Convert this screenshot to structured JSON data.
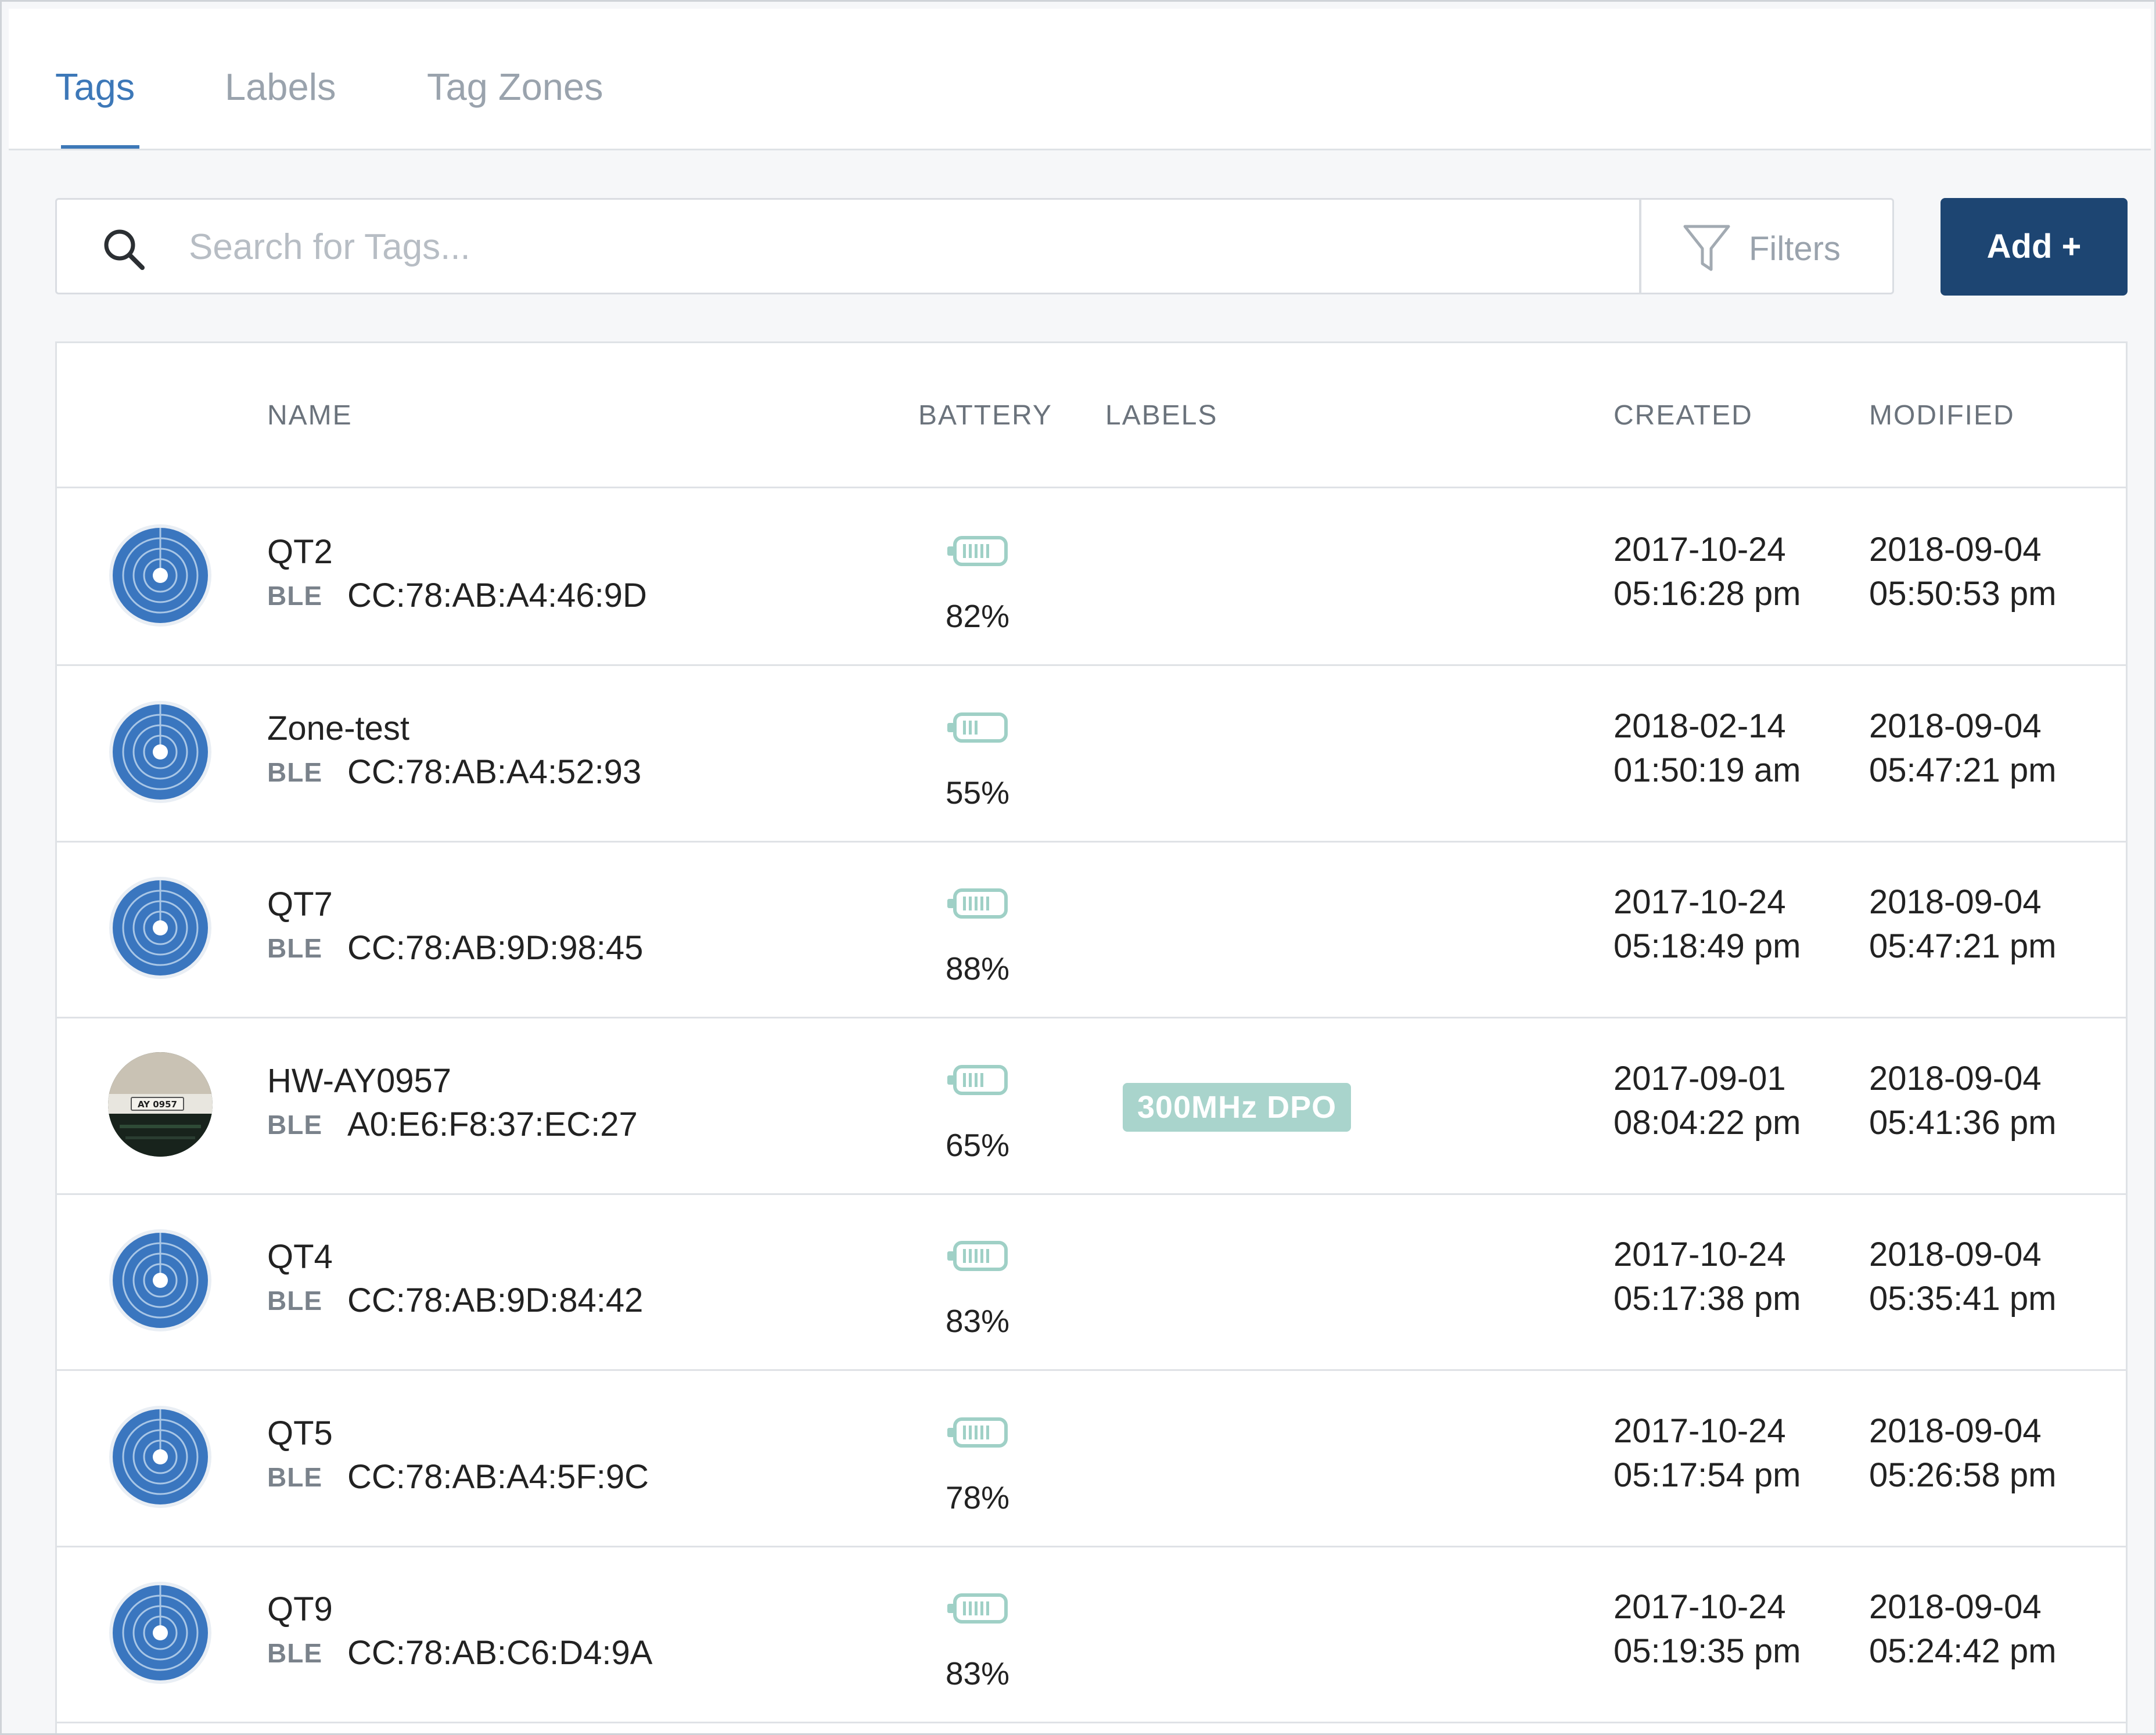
{
  "tabs": [
    {
      "label": "Tags",
      "active": true
    },
    {
      "label": "Labels",
      "active": false
    },
    {
      "label": "Tag Zones",
      "active": false
    }
  ],
  "search": {
    "placeholder": "Search for Tags...",
    "value": "",
    "icon": "search-icon"
  },
  "filters": {
    "label": "Filters",
    "icon": "filter-icon"
  },
  "add_button": {
    "label": "Add +"
  },
  "table": {
    "headers": {
      "name": "NAME",
      "battery": "BATTERY",
      "labels": "LABELS",
      "created": "CREATED",
      "modified": "MODIFIED"
    },
    "rows": [
      {
        "avatar": "tag-radar-icon",
        "name": "QT2",
        "type": "BLE",
        "mac": "CC:78:AB:A4:46:9D",
        "battery": "82%",
        "battery_level": 0.82,
        "label": "",
        "created_date": "2017-10-24",
        "created_time": "05:16:28 pm",
        "modified_date": "2018-09-04",
        "modified_time": "05:50:53 pm"
      },
      {
        "avatar": "tag-radar-icon",
        "name": "Zone-test",
        "type": "BLE",
        "mac": "CC:78:AB:A4:52:93",
        "battery": "55%",
        "battery_level": 0.55,
        "label": "",
        "created_date": "2018-02-14",
        "created_time": "01:50:19 am",
        "modified_date": "2018-09-04",
        "modified_time": "05:47:21 pm"
      },
      {
        "avatar": "tag-radar-icon",
        "name": "QT7",
        "type": "BLE",
        "mac": "CC:78:AB:9D:98:45",
        "battery": "88%",
        "battery_level": 0.88,
        "label": "",
        "created_date": "2017-10-24",
        "created_time": "05:18:49 pm",
        "modified_date": "2018-09-04",
        "modified_time": "05:47:21 pm"
      },
      {
        "avatar": "device-photo",
        "name": "HW-AY0957",
        "type": "BLE",
        "mac": "A0:E6:F8:37:EC:27",
        "battery": "65%",
        "battery_level": 0.65,
        "label": "300MHz DPO",
        "created_date": "2017-09-01",
        "created_time": "08:04:22 pm",
        "modified_date": "2018-09-04",
        "modified_time": "05:41:36 pm"
      },
      {
        "avatar": "tag-radar-icon",
        "name": "QT4",
        "type": "BLE",
        "mac": "CC:78:AB:9D:84:42",
        "battery": "83%",
        "battery_level": 0.83,
        "label": "",
        "created_date": "2017-10-24",
        "created_time": "05:17:38 pm",
        "modified_date": "2018-09-04",
        "modified_time": "05:35:41 pm"
      },
      {
        "avatar": "tag-radar-icon",
        "name": "QT5",
        "type": "BLE",
        "mac": "CC:78:AB:A4:5F:9C",
        "battery": "78%",
        "battery_level": 0.78,
        "label": "",
        "created_date": "2017-10-24",
        "created_time": "05:17:54 pm",
        "modified_date": "2018-09-04",
        "modified_time": "05:26:58 pm"
      },
      {
        "avatar": "tag-radar-icon",
        "name": "QT9",
        "type": "BLE",
        "mac": "CC:78:AB:C6:D4:9A",
        "battery": "83%",
        "battery_level": 0.83,
        "label": "",
        "created_date": "2017-10-24",
        "created_time": "05:19:35 pm",
        "modified_date": "2018-09-04",
        "modified_time": "05:24:42 pm"
      }
    ]
  },
  "colors": {
    "accent": "#3d78b8",
    "primary_button": "#1d4572",
    "battery": "#9fd0c6",
    "label_badge": "#a9d4cc",
    "avatar_blue": "#3a76bf"
  }
}
